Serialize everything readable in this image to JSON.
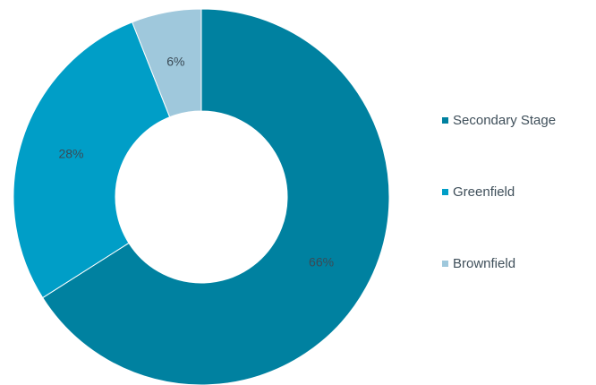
{
  "chart_data": {
    "type": "pie",
    "donut": true,
    "title": "",
    "categories": [
      "Secondary Stage",
      "Greenfield",
      "Brownfield"
    ],
    "values": [
      66,
      28,
      6
    ],
    "labels": [
      "66%",
      "28%",
      "6%"
    ],
    "colors": [
      "#0081A0",
      "#009EC7",
      "#9FC8DC"
    ],
    "legend_position": "right"
  }
}
